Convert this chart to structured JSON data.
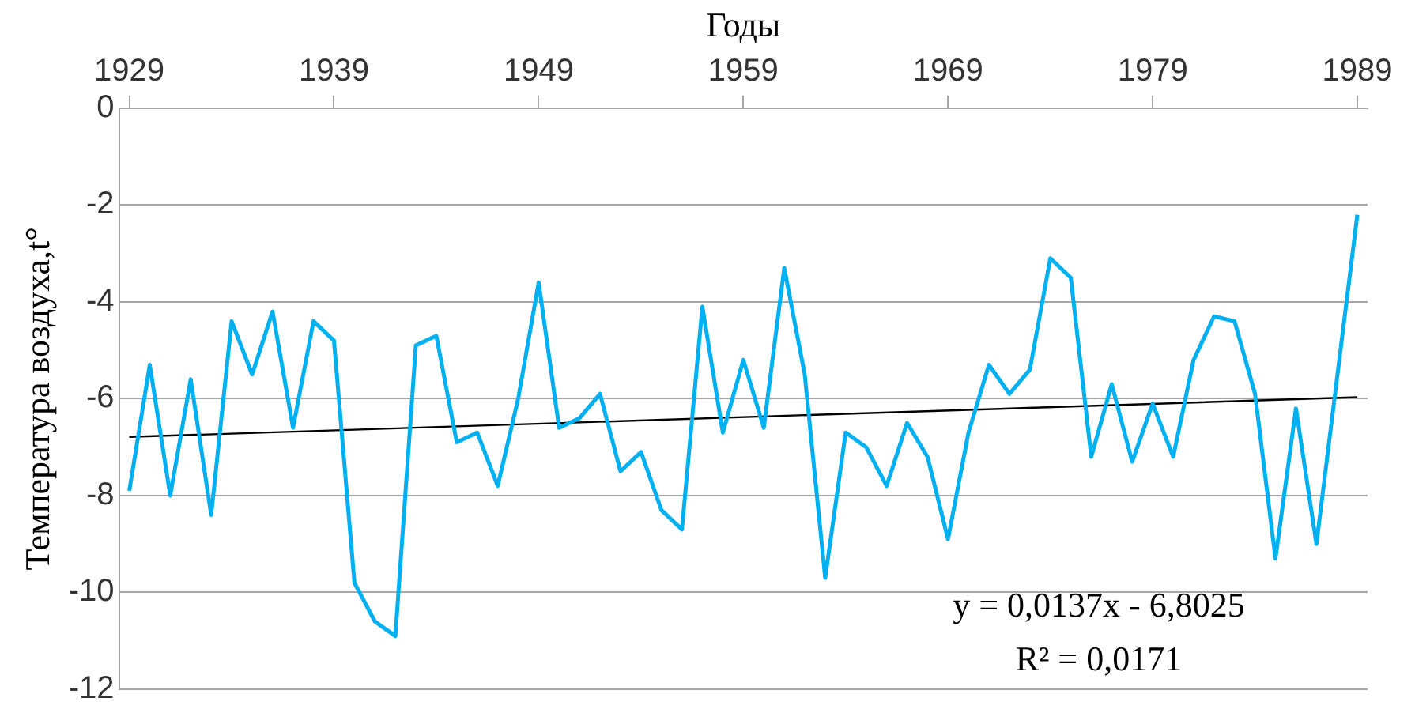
{
  "chart_data": {
    "type": "line",
    "xlabel": "Годы",
    "ylabel": "Температура воздуха,t°",
    "x": [
      1929,
      1930,
      1931,
      1932,
      1933,
      1934,
      1935,
      1936,
      1937,
      1938,
      1939,
      1940,
      1941,
      1942,
      1943,
      1944,
      1945,
      1946,
      1947,
      1948,
      1949,
      1950,
      1951,
      1952,
      1953,
      1954,
      1955,
      1956,
      1957,
      1958,
      1959,
      1960,
      1961,
      1962,
      1963,
      1964,
      1965,
      1966,
      1967,
      1968,
      1969,
      1970,
      1971,
      1972,
      1973,
      1974,
      1975,
      1976,
      1977,
      1978,
      1979,
      1980,
      1981,
      1982,
      1983,
      1984,
      1985,
      1986,
      1987,
      1988,
      1989
    ],
    "series": [
      {
        "color": "#00b0f0",
        "values": [
          -7.9,
          -5.3,
          -8.0,
          -5.6,
          -8.4,
          -4.4,
          -5.5,
          -4.2,
          -6.6,
          -4.4,
          -4.8,
          -9.8,
          -10.6,
          -10.9,
          -4.9,
          -4.7,
          -6.9,
          -6.7,
          -7.8,
          -6.0,
          -3.6,
          -6.6,
          -6.4,
          -5.9,
          -7.5,
          -7.1,
          -8.3,
          -8.7,
          -4.1,
          -6.7,
          -5.2,
          -6.6,
          -3.3,
          -5.5,
          -9.7,
          -6.7,
          -7.0,
          -7.8,
          -6.5,
          -7.2,
          -8.9,
          -6.7,
          -5.3,
          -5.9,
          -5.4,
          -3.1,
          -3.5,
          -7.2,
          -5.7,
          -7.3,
          -6.1,
          -7.2,
          -5.2,
          -4.3,
          -4.4,
          -5.9,
          -9.3,
          -6.2,
          -9.0,
          -5.6,
          -2.2
        ]
      },
      {
        "type": "line",
        "color": "#000000",
        "x": [
          1929,
          1989
        ],
        "values": [
          -6.79,
          -5.97
        ]
      }
    ],
    "xlim": [
      1928.5,
      1989.5
    ],
    "xticks": [
      1929,
      1939,
      1949,
      1959,
      1969,
      1979,
      1989
    ],
    "ylim": [
      -12,
      0
    ],
    "yticks": [
      0,
      -2,
      -4,
      -6,
      -8,
      -10,
      -12
    ],
    "grid": "y",
    "marker": "none",
    "annotations": [
      "y = 0,0137x - 6,8025",
      "R² = 0,0171"
    ]
  }
}
